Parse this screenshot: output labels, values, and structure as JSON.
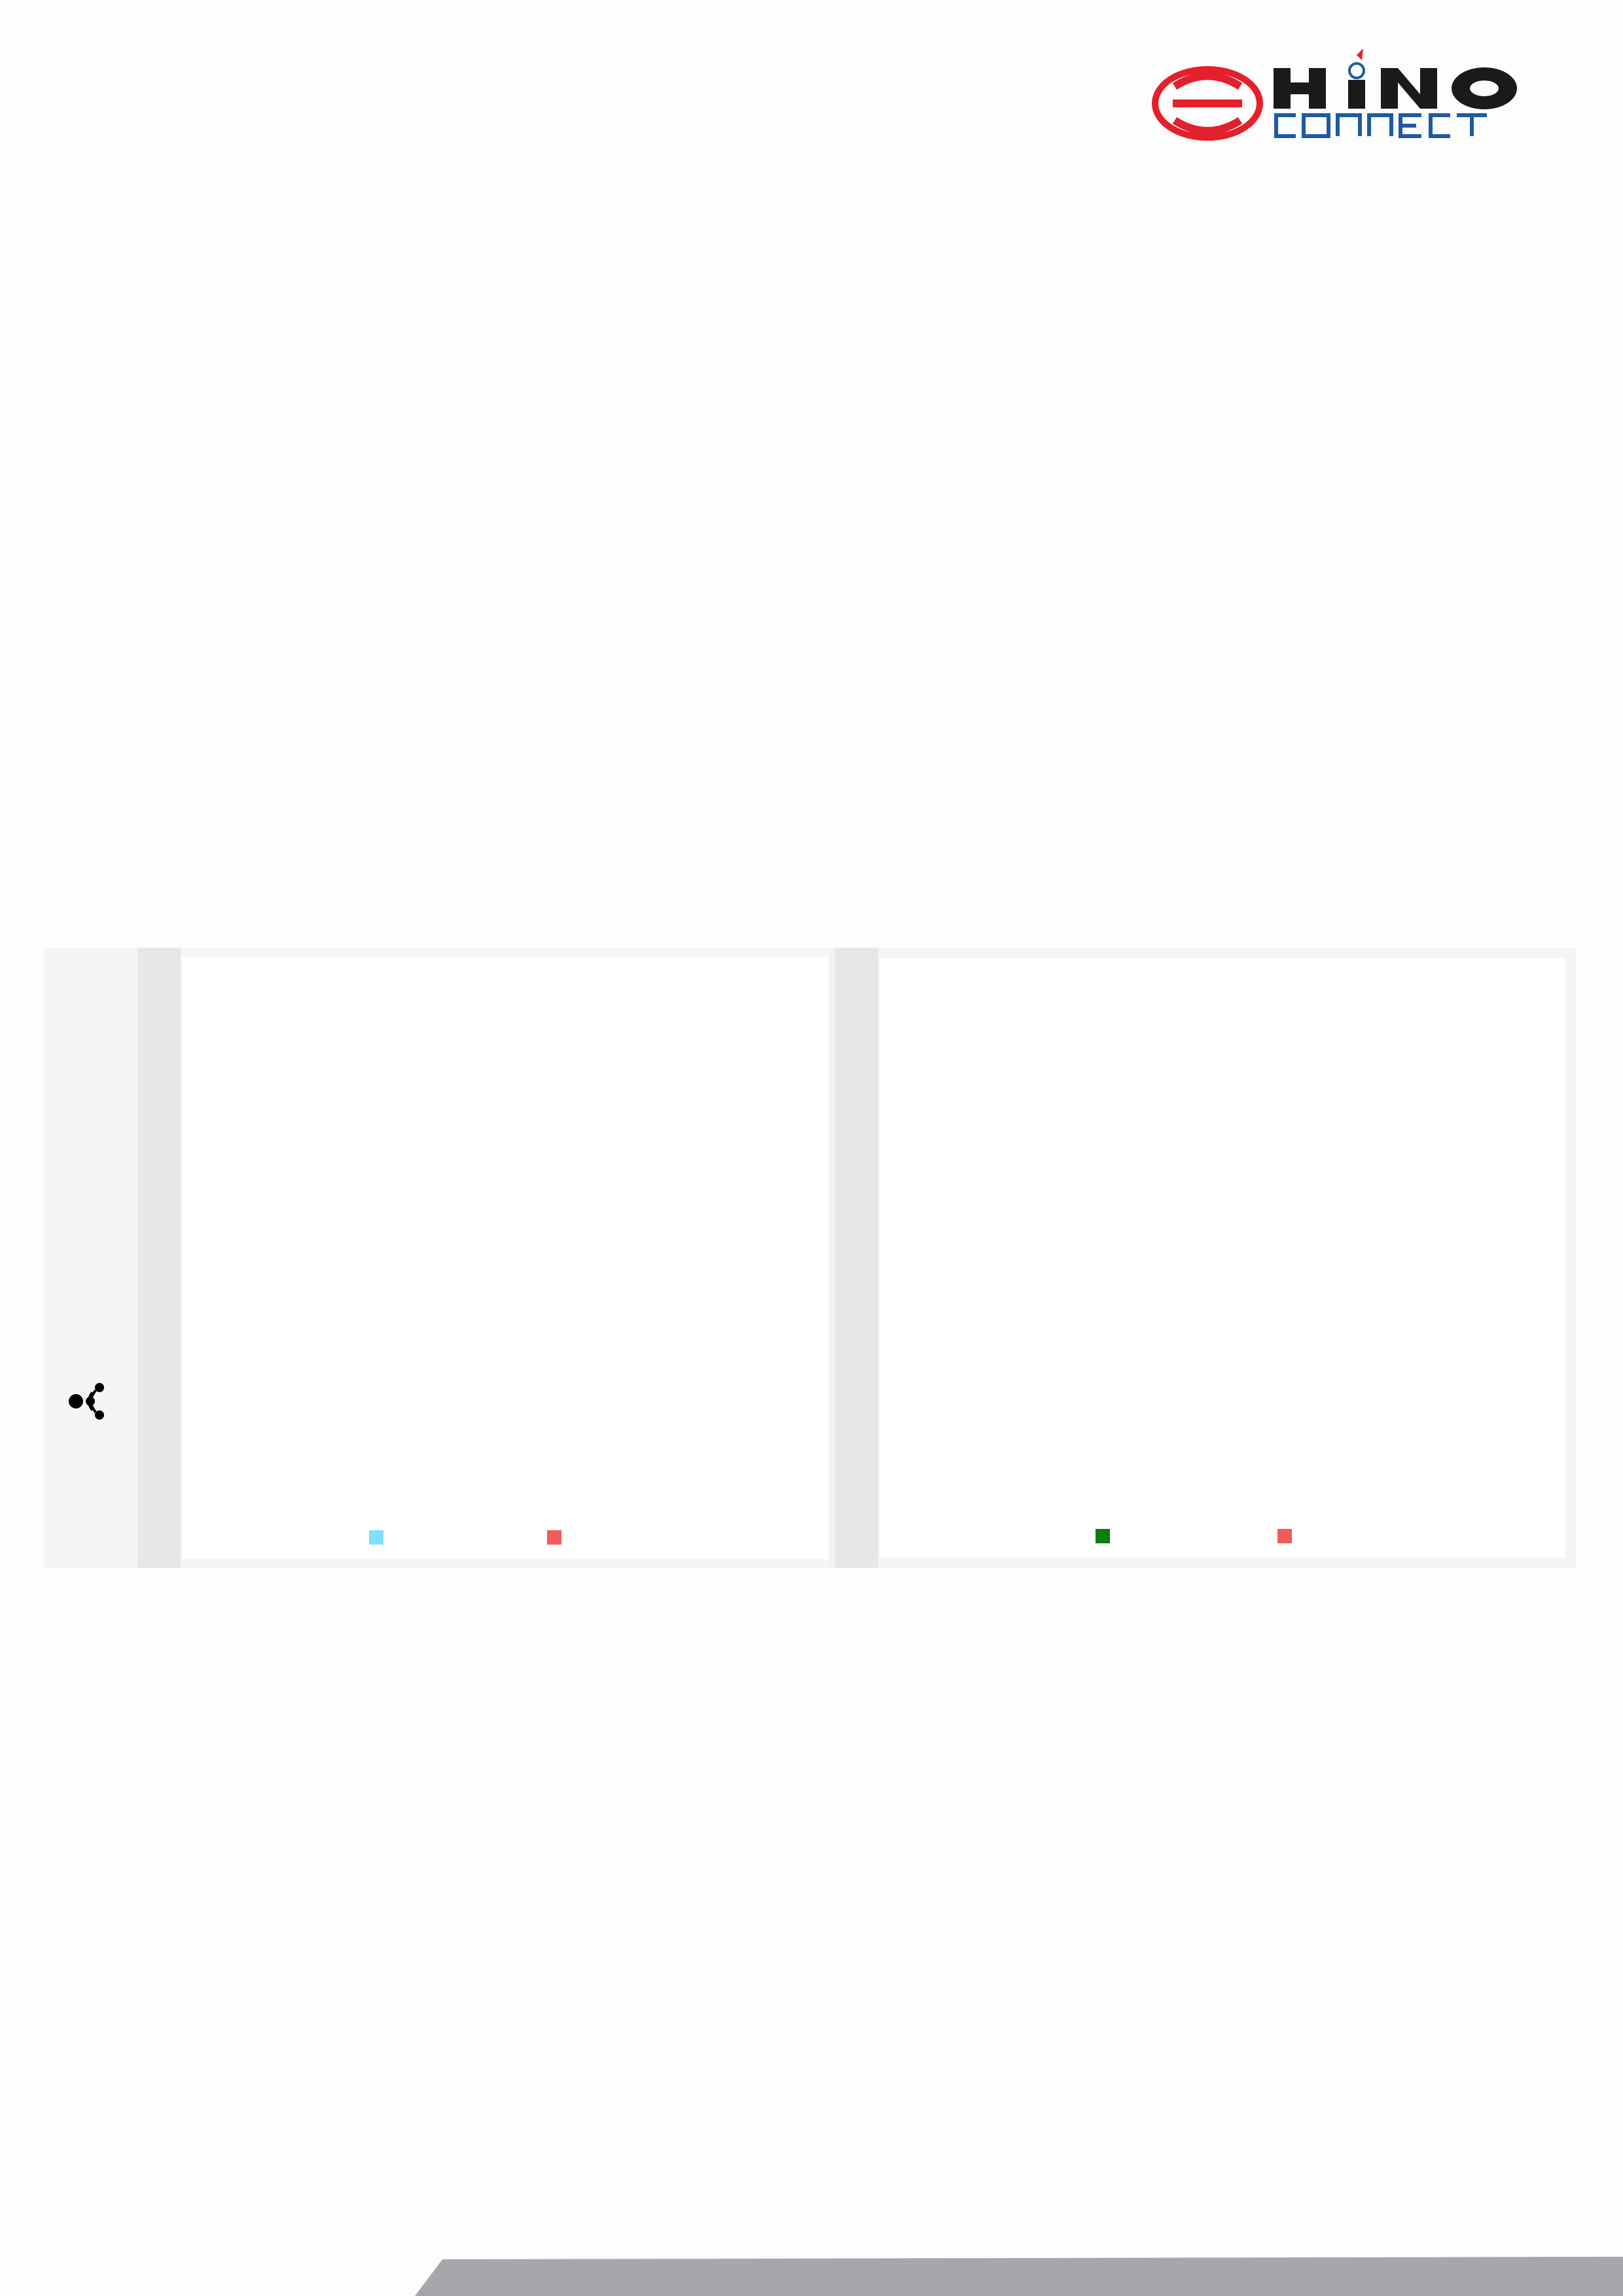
{
  "brand": {
    "wordmark": "HINO",
    "subtitle": "CONNECT",
    "colors": {
      "red": "#e3202b",
      "dark": "#1a1a1a",
      "blue": "#1e5aa3"
    }
  },
  "sidebar": {
    "icon": "share-network-icon"
  },
  "panels": [
    {
      "name": "left-chart-card",
      "legend": [
        {
          "color": "#7fe0ff"
        },
        {
          "color": "#f25b5b"
        }
      ]
    },
    {
      "name": "right-chart-card",
      "legend": [
        {
          "color": "#0a7d0a"
        },
        {
          "color": "#f25b5b"
        }
      ]
    }
  ],
  "footer": {
    "bar_color": "#a6a7aa"
  }
}
